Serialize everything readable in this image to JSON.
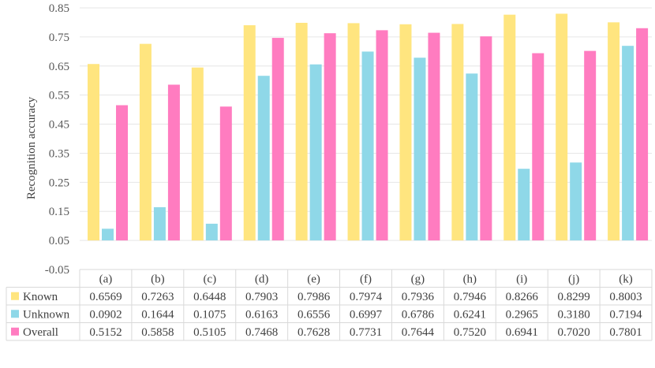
{
  "chart_data": {
    "type": "bar",
    "ylabel": "Recognition accuracy",
    "ylim": [
      -0.05,
      0.85
    ],
    "yticks": [
      "-0.05",
      "0.05",
      "0.15",
      "0.25",
      "0.35",
      "0.45",
      "0.55",
      "0.65",
      "0.75",
      "0.85"
    ],
    "categories": [
      "(a)",
      "(b)",
      "(c)",
      "(d)",
      "(e)",
      "(f)",
      "(g)",
      "(h)",
      "(i)",
      "(j)",
      "(k)"
    ],
    "series": [
      {
        "name": "Known",
        "color": "#FFE57F",
        "values": [
          0.6569,
          0.7263,
          0.6448,
          0.7903,
          0.7986,
          0.7974,
          0.7936,
          0.7946,
          0.8266,
          0.8299,
          0.8003
        ],
        "labels": [
          "0.6569",
          "0.7263",
          "0.6448",
          "0.7903",
          "0.7986",
          "0.7974",
          "0.7936",
          "0.7946",
          "0.8266",
          "0.8299",
          "0.8003"
        ]
      },
      {
        "name": "Unknown",
        "color": "#8FD8E8",
        "values": [
          0.0902,
          0.1644,
          0.1075,
          0.6163,
          0.6556,
          0.6997,
          0.6786,
          0.6241,
          0.2965,
          0.318,
          0.7194
        ],
        "labels": [
          "0.0902",
          "0.1644",
          "0.1075",
          "0.6163",
          "0.6556",
          "0.6997",
          "0.6786",
          "0.6241",
          "0.2965",
          "0.3180",
          "0.7194"
        ]
      },
      {
        "name": "Overall",
        "color": "#FF7CC0",
        "values": [
          0.5152,
          0.5858,
          0.5105,
          0.7468,
          0.7628,
          0.7731,
          0.7644,
          0.752,
          0.6941,
          0.702,
          0.7801
        ],
        "labels": [
          "0.5152",
          "0.5858",
          "0.5105",
          "0.7468",
          "0.7628",
          "0.7731",
          "0.7644",
          "0.7520",
          "0.6941",
          "0.7020",
          "0.7801"
        ]
      }
    ],
    "grid": true,
    "legend": "data-table-rows"
  }
}
